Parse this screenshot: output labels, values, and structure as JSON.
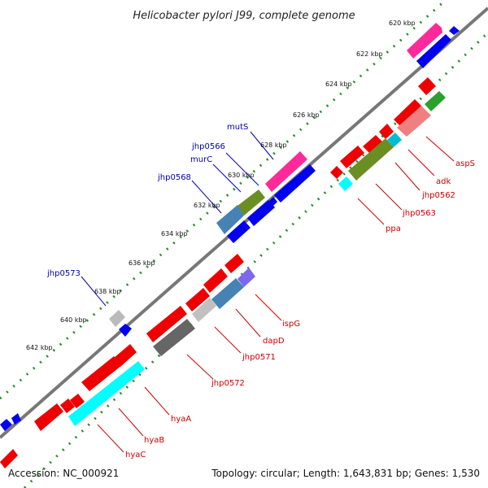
{
  "title": "Helicobacter pylori J99, complete genome",
  "footer": {
    "accession": "Accession: NC_000921",
    "summary": "Topology: circular; Length: 1,643,831 bp; Genes: 1,530"
  },
  "colors": {
    "backbone": "#888888",
    "tick_dots": "#228b22",
    "label_forward": "#0000aa",
    "label_reverse": "#cc0000"
  },
  "ticks": [
    "620 kbp",
    "622 kbp",
    "624 kbp",
    "626 kbp",
    "628 kbp",
    "630 kbp",
    "632 kbp",
    "634 kbp",
    "636 kbp",
    "638 kbp",
    "640 kbp",
    "642 kbp"
  ],
  "forward_labels": [
    "mutS",
    "jhp0566",
    "murC",
    "jhp0568",
    "jhp0573"
  ],
  "reverse_labels": [
    "aspS",
    "adk",
    "jhp0562",
    "jhp0563",
    "ppa",
    "ispG",
    "dapD",
    "jhp0571",
    "jhp0572",
    "hyaA",
    "hyaB",
    "hyaC"
  ]
}
